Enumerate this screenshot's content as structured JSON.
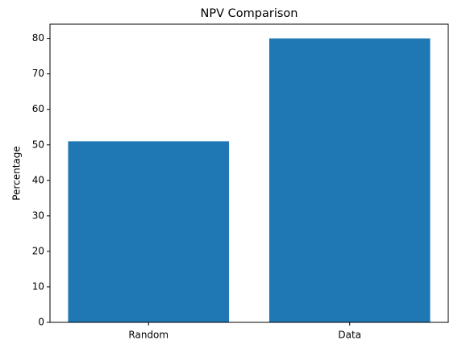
{
  "chart_data": {
    "type": "bar",
    "title": "NPV Comparison",
    "y_label": "Percentage",
    "categories": [
      "Random",
      "Data"
    ],
    "values": [
      51,
      80
    ],
    "color": "#1f77b4",
    "ylim": [
      0,
      84
    ],
    "yticks": [
      0,
      10,
      20,
      30,
      40,
      50,
      60,
      70,
      80
    ],
    "grid": false
  }
}
